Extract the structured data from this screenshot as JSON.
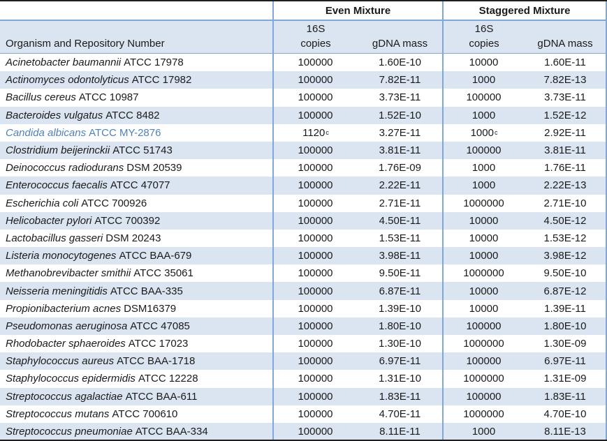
{
  "table": {
    "group_headers": {
      "blank": "",
      "even": "Even Mixture",
      "staggered": "Staggered Mixture"
    },
    "organism_header": "Organism and Repository Number",
    "sub_headers": {
      "copies_line1": "16S",
      "copies_line2": "copies",
      "gdna_mass": "gDNA mass"
    },
    "rows": [
      {
        "name_italic": "Acinetobacter baumannii",
        "name_rest": "ATCC 17978",
        "even_copies": "100000",
        "even_copies_sup": "",
        "even_gdna": "1.60E-10",
        "stag_copies": "10000",
        "stag_copies_sup": "",
        "stag_gdna": "1.60E-11",
        "highlight_organism": false
      },
      {
        "name_italic": "Actinomyces odontolyticus",
        "name_rest": "ATCC 17982",
        "even_copies": "100000",
        "even_copies_sup": "",
        "even_gdna": "7.82E-11",
        "stag_copies": "1000",
        "stag_copies_sup": "",
        "stag_gdna": "7.82E-13",
        "highlight_organism": false
      },
      {
        "name_italic": "Bacillus cereus",
        "name_rest": "ATCC 10987",
        "even_copies": "100000",
        "even_copies_sup": "",
        "even_gdna": "3.73E-11",
        "stag_copies": "100000",
        "stag_copies_sup": "",
        "stag_gdna": "3.73E-11",
        "highlight_organism": false
      },
      {
        "name_italic": "Bacteroides vulgatus",
        "name_rest": "ATCC 8482",
        "even_copies": "100000",
        "even_copies_sup": "",
        "even_gdna": "1.52E-10",
        "stag_copies": "1000",
        "stag_copies_sup": "",
        "stag_gdna": "1.52E-12",
        "highlight_organism": false
      },
      {
        "name_italic": "Candida albicans",
        "name_rest": "ATCC MY-2876",
        "even_copies": "1120",
        "even_copies_sup": "c",
        "even_gdna": "3.27E-11",
        "stag_copies": "1000",
        "stag_copies_sup": "c",
        "stag_gdna": "2.92E-11",
        "highlight_organism": true
      },
      {
        "name_italic": "Clostridium beijerinckii",
        "name_rest": "ATCC 51743",
        "even_copies": "100000",
        "even_copies_sup": "",
        "even_gdna": "3.81E-11",
        "stag_copies": "100000",
        "stag_copies_sup": "",
        "stag_gdna": "3.81E-11",
        "highlight_organism": false
      },
      {
        "name_italic": "Deinococcus radiodurans",
        "name_rest": "DSM 20539",
        "even_copies": "100000",
        "even_copies_sup": "",
        "even_gdna": "1.76E-09",
        "stag_copies": "1000",
        "stag_copies_sup": "",
        "stag_gdna": "1.76E-11",
        "highlight_organism": false
      },
      {
        "name_italic": "Enterococcus faecalis",
        "name_rest": "ATCC 47077",
        "even_copies": "100000",
        "even_copies_sup": "",
        "even_gdna": "2.22E-11",
        "stag_copies": "1000",
        "stag_copies_sup": "",
        "stag_gdna": "2.22E-13",
        "highlight_organism": false
      },
      {
        "name_italic": "Escherichia coli",
        "name_rest": "ATCC 700926",
        "even_copies": "100000",
        "even_copies_sup": "",
        "even_gdna": "2.71E-11",
        "stag_copies": "1000000",
        "stag_copies_sup": "",
        "stag_gdna": "2.71E-10",
        "highlight_organism": false
      },
      {
        "name_italic": "Helicobacter pylori",
        "name_rest": "ATCC 700392",
        "even_copies": "100000",
        "even_copies_sup": "",
        "even_gdna": "4.50E-11",
        "stag_copies": "10000",
        "stag_copies_sup": "",
        "stag_gdna": "4.50E-12",
        "highlight_organism": false
      },
      {
        "name_italic": "Lactobacillus gasseri",
        "name_rest": "DSM 20243",
        "even_copies": "100000",
        "even_copies_sup": "",
        "even_gdna": "1.53E-11",
        "stag_copies": "10000",
        "stag_copies_sup": "",
        "stag_gdna": "1.53E-12",
        "highlight_organism": false
      },
      {
        "name_italic": "Listeria monocytogenes",
        "name_rest": "ATCC BAA-679",
        "even_copies": "100000",
        "even_copies_sup": "",
        "even_gdna": "3.98E-11",
        "stag_copies": "10000",
        "stag_copies_sup": "",
        "stag_gdna": "3.98E-12",
        "highlight_organism": false
      },
      {
        "name_italic": "Methanobrevibacter smithii",
        "name_rest": "ATCC 35061",
        "even_copies": "100000",
        "even_copies_sup": "",
        "even_gdna": "9.50E-11",
        "stag_copies": "1000000",
        "stag_copies_sup": "",
        "stag_gdna": "9.50E-10",
        "highlight_organism": false
      },
      {
        "name_italic": "Neisseria meningitidis",
        "name_rest": "ATCC BAA-335",
        "even_copies": "100000",
        "even_copies_sup": "",
        "even_gdna": "6.87E-11",
        "stag_copies": "10000",
        "stag_copies_sup": "",
        "stag_gdna": "6.87E-12",
        "highlight_organism": false
      },
      {
        "name_italic": "Propionibacterium acnes",
        "name_rest": "DSM16379",
        "even_copies": "100000",
        "even_copies_sup": "",
        "even_gdna": "1.39E-10",
        "stag_copies": "10000",
        "stag_copies_sup": "",
        "stag_gdna": "1.39E-11",
        "highlight_organism": false
      },
      {
        "name_italic": "Pseudomonas aeruginosa",
        "name_rest": "ATCC 47085",
        "even_copies": "100000",
        "even_copies_sup": "",
        "even_gdna": "1.80E-10",
        "stag_copies": "100000",
        "stag_copies_sup": "",
        "stag_gdna": "1.80E-10",
        "highlight_organism": false
      },
      {
        "name_italic": "Rhodobacter sphaeroides",
        "name_rest": "ATCC 17023",
        "even_copies": "100000",
        "even_copies_sup": "",
        "even_gdna": "1.30E-10",
        "stag_copies": "1000000",
        "stag_copies_sup": "",
        "stag_gdna": "1.30E-09",
        "highlight_organism": false
      },
      {
        "name_italic": "Staphylococcus aureus",
        "name_rest": "ATCC BAA-1718",
        "even_copies": "100000",
        "even_copies_sup": "",
        "even_gdna": "6.97E-11",
        "stag_copies": "100000",
        "stag_copies_sup": "",
        "stag_gdna": "6.97E-11",
        "highlight_organism": false
      },
      {
        "name_italic": "Staphylococcus epidermidis",
        "name_rest": "ATCC 12228",
        "even_copies": "100000",
        "even_copies_sup": "",
        "even_gdna": "1.31E-10",
        "stag_copies": "1000000",
        "stag_copies_sup": "",
        "stag_gdna": "1.31E-09",
        "highlight_organism": false
      },
      {
        "name_italic": "Streptococcus agalactiae",
        "name_rest": "ATCC BAA-611",
        "even_copies": "100000",
        "even_copies_sup": "",
        "even_gdna": "1.83E-11",
        "stag_copies": "100000",
        "stag_copies_sup": "",
        "stag_gdna": "1.83E-11",
        "highlight_organism": false
      },
      {
        "name_italic": "Streptococcus mutans",
        "name_rest": "ATCC 700610",
        "even_copies": "100000",
        "even_copies_sup": "",
        "even_gdna": "4.70E-11",
        "stag_copies": "1000000",
        "stag_copies_sup": "",
        "stag_gdna": "4.70E-10",
        "highlight_organism": false
      },
      {
        "name_italic": "Streptococcus pneumoniae",
        "name_rest": "ATCC BAA-334",
        "even_copies": "100000",
        "even_copies_sup": "",
        "even_gdna": "8.11E-11",
        "stag_copies": "1000",
        "stag_copies_sup": "",
        "stag_gdna": "8.11E-13",
        "highlight_organism": false
      }
    ]
  },
  "colors": {
    "stripe": "#DBE5F1",
    "border_blue": "#7FA8D9",
    "border_dark": "#1F1F1F",
    "highlight_text": "#4F81BD",
    "text": "#1A1A1A"
  }
}
